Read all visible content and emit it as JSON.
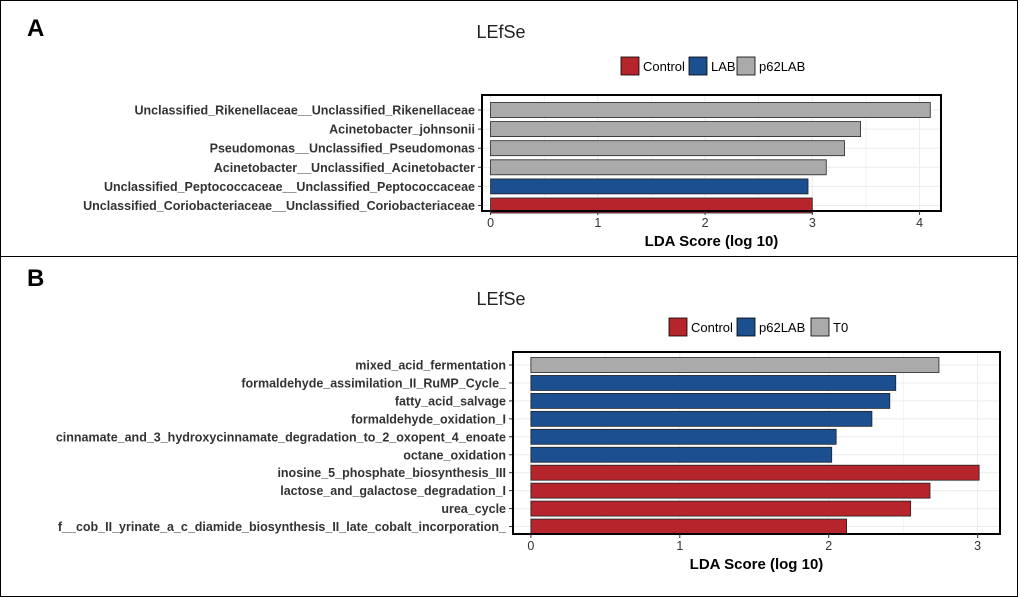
{
  "panels": [
    {
      "letter": "A",
      "title": "LEfSe",
      "legend": [
        {
          "name": "Control",
          "color": "#b5252b"
        },
        {
          "name": "LAB",
          "color": "#1b4f8f"
        },
        {
          "name": "p62LAB",
          "color": "#aaaaaa"
        }
      ]
    },
    {
      "letter": "B",
      "title": "LEfSe",
      "legend": [
        {
          "name": "Control",
          "color": "#b5252b"
        },
        {
          "name": "p62LAB",
          "color": "#1b4f8f"
        },
        {
          "name": "T0",
          "color": "#aaaaaa"
        }
      ]
    }
  ],
  "chart_data": [
    {
      "type": "bar",
      "orientation": "horizontal",
      "title": "LEfSe",
      "xlabel": "LDA Score (log 10)",
      "xlim": [
        -0.08,
        4.2
      ],
      "xticks": [
        0,
        1,
        2,
        3,
        4
      ],
      "grid": true,
      "legend_position": "top",
      "categories": [
        "Unclassified_Rikenellaceae__Unclassified_Rikenellaceae",
        "Acinetobacter_johnsonii",
        "Pseudomonas__Unclassified_Pseudomonas",
        "Acinetobacter__Unclassified_Acinetobacter",
        "Unclassified_Peptococcaceae__Unclassified_Peptococcaceae",
        "Unclassified_Coriobacteriaceae__Unclassified_Coriobacteriaceae"
      ],
      "values": [
        4.1,
        3.45,
        3.3,
        3.13,
        2.96,
        3.0
      ],
      "groups": [
        "p62LAB",
        "p62LAB",
        "p62LAB",
        "p62LAB",
        "LAB",
        "Control"
      ]
    },
    {
      "type": "bar",
      "orientation": "horizontal",
      "title": "LEfSe",
      "xlabel": "LDA Score (log 10)",
      "xlim": [
        -0.12,
        3.15
      ],
      "xticks": [
        0,
        1,
        2,
        3
      ],
      "grid": true,
      "legend_position": "top",
      "categories": [
        "mixed_acid_fermentation",
        "formaldehyde_assimilation_II_RuMP_Cycle_",
        "fatty_acid_salvage",
        "formaldehyde_oxidation_I",
        "cinnamate_and_3_hydroxycinnamate_degradation_to_2_oxopent_4_enoate",
        "octane_oxidation",
        "inosine_5_phosphate_biosynthesis_III",
        "lactose_and_galactose_degradation_I",
        "urea_cycle",
        "f__cob_II_yrinate_a_c_diamide_biosynthesis_II_late_cobalt_incorporation_"
      ],
      "values": [
        2.74,
        2.45,
        2.41,
        2.29,
        2.05,
        2.02,
        3.01,
        2.68,
        2.55,
        2.12
      ],
      "groups": [
        "T0",
        "p62LAB",
        "p62LAB",
        "p62LAB",
        "p62LAB",
        "p62LAB",
        "Control",
        "Control",
        "Control",
        "Control"
      ]
    }
  ]
}
